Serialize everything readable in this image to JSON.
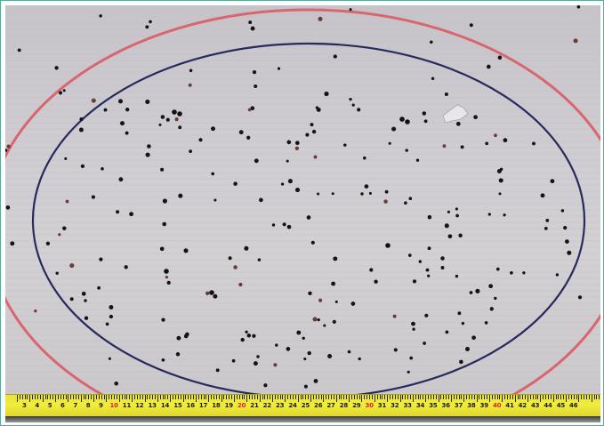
{
  "photo": {
    "subject": "cardboard target sheet with pellet impacts and measuring tape",
    "colors": {
      "board": "#cfcdd1",
      "inner_ring": "#262a5e",
      "outer_ring": "#d9656f",
      "pellet": "#151515",
      "tape": "#eee93b",
      "frame": "#3db6a4"
    }
  },
  "tape": {
    "numbers": [
      "3",
      "4",
      "5",
      "6",
      "7",
      "8",
      "9",
      "10",
      "11",
      "12",
      "13",
      "14",
      "15",
      "16",
      "17",
      "18",
      "19",
      "20",
      "21",
      "22",
      "23",
      "24",
      "25",
      "26",
      "27",
      "28",
      "29",
      "30",
      "31",
      "32",
      "33",
      "34",
      "35",
      "36",
      "37",
      "38",
      "39",
      "40",
      "41",
      "42",
      "43",
      "44",
      "45",
      "46"
    ],
    "red_numbers": [
      "10",
      "20",
      "30",
      "40"
    ]
  }
}
